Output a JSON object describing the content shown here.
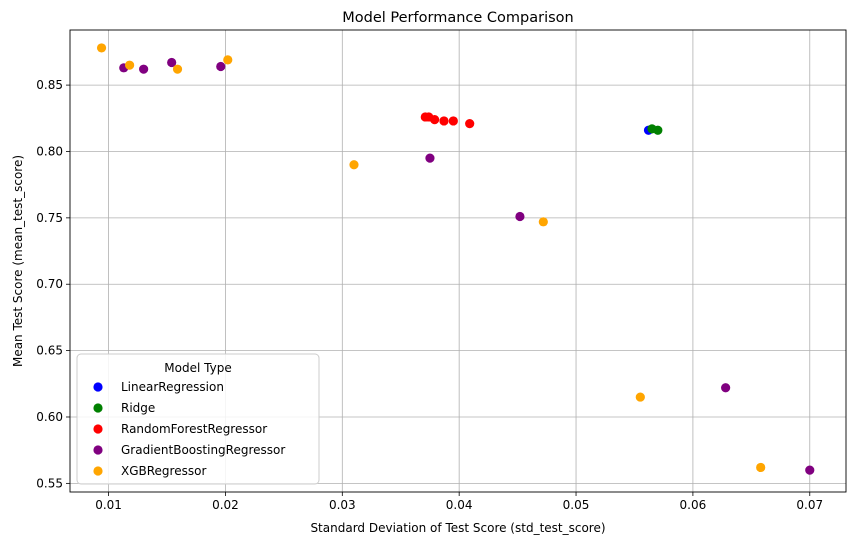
{
  "chart_data": {
    "type": "scatter",
    "title": "Model Performance Comparison",
    "xlabel": "Standard Deviation of Test Score (std_test_score)",
    "ylabel": "Mean Test Score (mean_test_score)",
    "xlim": [
      0.0067,
      0.0731
    ],
    "ylim": [
      0.5435,
      0.8915
    ],
    "xticks": [
      0.01,
      0.02,
      0.03,
      0.04,
      0.05,
      0.06,
      0.07
    ],
    "xtick_labels": [
      "0.01",
      "0.02",
      "0.03",
      "0.04",
      "0.05",
      "0.06",
      "0.07"
    ],
    "yticks": [
      0.55,
      0.6,
      0.65,
      0.7,
      0.75,
      0.8,
      0.85
    ],
    "ytick_labels": [
      "0.55",
      "0.60",
      "0.65",
      "0.70",
      "0.75",
      "0.80",
      "0.85"
    ],
    "grid": true,
    "legend": {
      "title": "Model Type",
      "placement": "lower-left"
    },
    "series": [
      {
        "name": "LinearRegression",
        "color": "#0000ff",
        "points": [
          [
            0.0562,
            0.816
          ]
        ]
      },
      {
        "name": "Ridge",
        "color": "#008000",
        "points": [
          [
            0.0565,
            0.817
          ],
          [
            0.057,
            0.816
          ]
        ]
      },
      {
        "name": "RandomForestRegressor",
        "color": "#ff0000",
        "points": [
          [
            0.0371,
            0.826
          ],
          [
            0.0374,
            0.826
          ],
          [
            0.0379,
            0.824
          ],
          [
            0.0387,
            0.823
          ],
          [
            0.0395,
            0.823
          ],
          [
            0.0409,
            0.821
          ]
        ]
      },
      {
        "name": "GradientBoostingRegressor",
        "color": "#800080",
        "points": [
          [
            0.0113,
            0.863
          ],
          [
            0.013,
            0.862
          ],
          [
            0.0154,
            0.867
          ],
          [
            0.0196,
            0.864
          ],
          [
            0.0375,
            0.795
          ],
          [
            0.0452,
            0.751
          ],
          [
            0.0628,
            0.622
          ],
          [
            0.07,
            0.56
          ]
        ]
      },
      {
        "name": "XGBRegressor",
        "color": "#ffa500",
        "points": [
          [
            0.0094,
            0.878
          ],
          [
            0.0118,
            0.865
          ],
          [
            0.0159,
            0.862
          ],
          [
            0.0202,
            0.869
          ],
          [
            0.031,
            0.79
          ],
          [
            0.0472,
            0.747
          ],
          [
            0.0555,
            0.615
          ],
          [
            0.0658,
            0.562
          ]
        ]
      }
    ]
  }
}
